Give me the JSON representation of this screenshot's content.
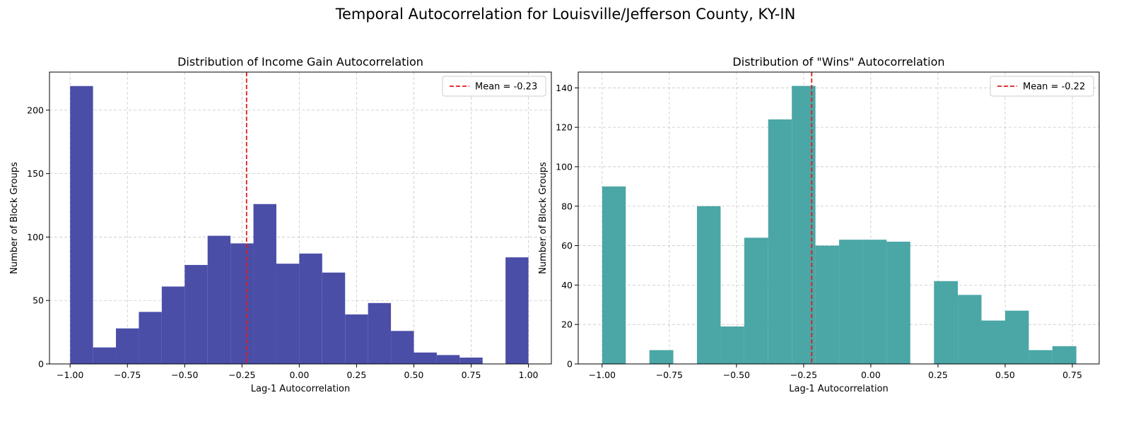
{
  "figure": {
    "title": "Temporal Autocorrelation for Louisville/Jefferson County, KY-IN"
  },
  "chart_data": [
    {
      "type": "bar",
      "title": "Distribution of Income Gain Autocorrelation",
      "xlabel": "Lag-1 Autocorrelation",
      "ylabel": "Number of Block Groups",
      "xlim": [
        -1.09,
        1.1
      ],
      "ylim": [
        0,
        230
      ],
      "xticks": [
        -1.0,
        -0.75,
        -0.5,
        -0.25,
        0.0,
        0.25,
        0.5,
        0.75,
        1.0
      ],
      "xtick_labels": [
        "−1.00",
        "−0.75",
        "−0.50",
        "−0.25",
        "0.00",
        "0.25",
        "0.50",
        "0.75",
        "1.00"
      ],
      "yticks": [
        0,
        50,
        100,
        150,
        200
      ],
      "ytick_labels": [
        "0",
        "50",
        "100",
        "150",
        "200"
      ],
      "bin_edges": [
        -1.0,
        -0.9,
        -0.8,
        -0.7,
        -0.6,
        -0.5,
        -0.4,
        -0.3,
        -0.2,
        -0.1,
        0.0,
        0.1,
        0.2,
        0.3,
        0.4,
        0.5,
        0.6,
        0.7,
        0.8,
        0.9,
        1.0
      ],
      "counts": [
        219,
        13,
        28,
        41,
        61,
        78,
        101,
        95,
        126,
        79,
        87,
        72,
        39,
        48,
        26,
        9,
        7,
        5,
        0,
        84
      ],
      "bar_color": "#4b4ea7",
      "mean": -0.23,
      "mean_label": "Mean = -0.23",
      "mean_color": "#e31a1c",
      "grid": true,
      "legend_position": "top-right"
    },
    {
      "type": "bar",
      "title": "Distribution of \"Wins\" Autocorrelation",
      "xlabel": "Lag-1 Autocorrelation",
      "ylabel": "Number of Block Groups",
      "xlim": [
        -1.089,
        0.85
      ],
      "ylim": [
        0,
        148
      ],
      "xticks": [
        -1.0,
        -0.75,
        -0.5,
        -0.25,
        0.0,
        0.25,
        0.5,
        0.75
      ],
      "xtick_labels": [
        "−1.00",
        "−0.75",
        "−0.50",
        "−0.25",
        "0.00",
        "0.25",
        "0.50",
        "0.75"
      ],
      "yticks": [
        0,
        20,
        40,
        60,
        80,
        100,
        120,
        140
      ],
      "ytick_labels": [
        "0",
        "20",
        "40",
        "60",
        "80",
        "100",
        "120",
        "140"
      ],
      "bin_edges": [
        -1.0,
        -0.912,
        -0.824,
        -0.735,
        -0.647,
        -0.559,
        -0.471,
        -0.382,
        -0.294,
        -0.206,
        -0.118,
        -0.029,
        0.059,
        0.147,
        0.235,
        0.324,
        0.412,
        0.5,
        0.588,
        0.676,
        0.765
      ],
      "counts": [
        90,
        0,
        7,
        0,
        80,
        19,
        64,
        124,
        141,
        60,
        63,
        63,
        62,
        0,
        42,
        35,
        22,
        27,
        7,
        9
      ],
      "bar_color": "#4ba6a6",
      "mean": -0.22,
      "mean_label": "Mean = -0.22",
      "mean_color": "#e31a1c",
      "grid": true,
      "legend_position": "top-right"
    }
  ]
}
